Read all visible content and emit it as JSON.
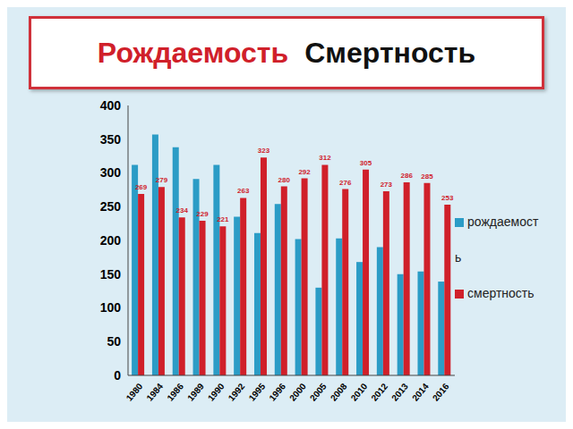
{
  "chart_data": {
    "type": "bar",
    "title": [
      "Рождаемость",
      "Смертность"
    ],
    "categories": [
      "1980",
      "1984",
      "1986",
      "1989",
      "1990",
      "1992",
      "1995",
      "1996",
      "2000",
      "2005",
      "2008",
      "2010",
      "2012",
      "2013",
      "2014",
      "2016"
    ],
    "series": [
      {
        "name": "рождаемость",
        "color": "#2b9cc6",
        "values": [
          312,
          357,
          338,
          291,
          312,
          235,
          211,
          254,
          202,
          130,
          203,
          168,
          190,
          150,
          154,
          139
        ]
      },
      {
        "name": "смертность",
        "color": "#d0202a",
        "values": [
          269,
          279,
          234,
          229,
          221,
          263,
          323,
          280,
          292,
          312,
          276,
          305,
          273,
          286,
          285,
          253
        ],
        "data_labels": true
      }
    ],
    "ylim": [
      0,
      400
    ],
    "yticks": [
      0,
      50,
      100,
      150,
      200,
      250,
      300,
      350,
      400
    ],
    "grid": false,
    "legend": "right"
  }
}
